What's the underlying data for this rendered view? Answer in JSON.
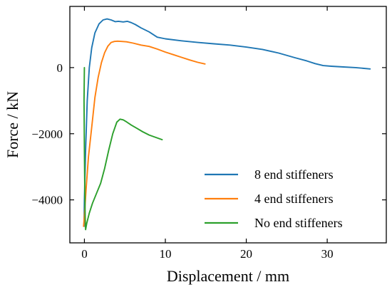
{
  "chart_data": {
    "type": "line",
    "title": "",
    "xlabel": "Displacement / mm",
    "ylabel": "Force / kN",
    "xlim": [
      -1.8,
      37.3
    ],
    "ylim": [
      -5300,
      1850
    ],
    "xticks": [
      0,
      10,
      20,
      30
    ],
    "yticks": [
      0,
      -2000,
      -4000
    ],
    "xtick_labels": [
      "0",
      "10",
      "20",
      "30"
    ],
    "ytick_labels": [
      "0",
      "−2000",
      "−4000"
    ],
    "grid": false,
    "legend_position": "lower-right",
    "series": [
      {
        "name": "8 end stiffeners",
        "color": "#1f77b4",
        "x": [
          -0.05,
          0.0,
          0.15,
          0.35,
          0.6,
          0.9,
          1.3,
          1.8,
          2.3,
          2.8,
          3.3,
          3.8,
          4.2,
          4.8,
          5.3,
          5.8,
          6.3,
          7.0,
          8.0,
          9.0,
          10.0,
          12.0,
          14.0,
          16.0,
          18.0,
          20.0,
          22.0,
          24.0,
          26.0,
          27.5,
          28.5,
          29.5,
          30.5,
          32.0,
          33.5,
          35.3
        ],
        "y": [
          -4800,
          -4000,
          -2500,
          -1000,
          0,
          600,
          1050,
          1320,
          1440,
          1470,
          1440,
          1390,
          1400,
          1380,
          1400,
          1360,
          1300,
          1200,
          1080,
          920,
          870,
          810,
          760,
          720,
          680,
          620,
          550,
          440,
          300,
          200,
          120,
          60,
          40,
          20,
          0,
          -40
        ]
      },
      {
        "name": "4 end stiffeners",
        "color": "#ff7f0e",
        "x": [
          -0.1,
          0.0,
          0.2,
          0.5,
          0.9,
          1.3,
          1.7,
          2.1,
          2.5,
          2.9,
          3.3,
          3.7,
          4.1,
          4.6,
          5.2,
          6.0,
          7.0,
          8.0,
          9.0,
          10.0,
          11.0,
          12.0,
          13.0,
          14.0,
          14.9
        ],
        "y": [
          -4800,
          -4500,
          -3700,
          -2700,
          -1800,
          -900,
          -300,
          150,
          450,
          650,
          760,
          790,
          800,
          790,
          780,
          740,
          680,
          640,
          560,
          470,
          390,
          310,
          230,
          160,
          110
        ]
      },
      {
        "name": "No end stiffeners",
        "color": "#2ca02c",
        "x": [
          0.0,
          -0.05,
          0.0,
          0.05,
          0.1,
          0.15,
          0.3,
          0.6,
          1.0,
          1.5,
          2.0,
          2.5,
          3.0,
          3.5,
          4.0,
          4.4,
          4.8,
          5.2,
          5.8,
          6.5,
          7.2,
          8.0,
          8.8,
          9.6
        ],
        "y": [
          0,
          -1000,
          -2500,
          -3800,
          -4600,
          -4900,
          -4700,
          -4400,
          -4100,
          -3800,
          -3500,
          -3050,
          -2500,
          -2000,
          -1650,
          -1560,
          -1580,
          -1640,
          -1740,
          -1840,
          -1940,
          -2040,
          -2110,
          -2180
        ]
      }
    ]
  }
}
